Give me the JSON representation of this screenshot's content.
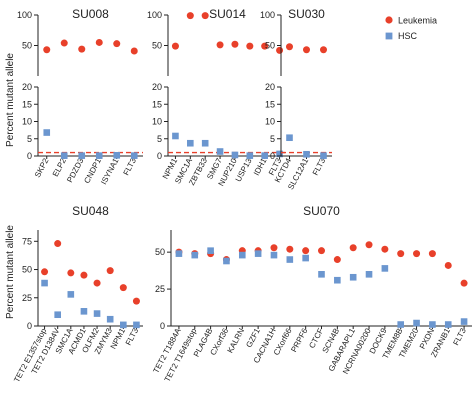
{
  "ylabel": "Percent mutant allele",
  "legend": [
    {
      "name": "Leukemia",
      "color": "#e8402a",
      "shape": "circle"
    },
    {
      "name": "HSC",
      "color": "#6b96cf",
      "shape": "square"
    }
  ],
  "chart_data": [
    {
      "type": "scatter",
      "title": "SU008",
      "ylabel": "Percent mutant allele",
      "broken_axis": true,
      "y_upper_ticks": [
        50,
        100
      ],
      "y_lower_ticks": [
        0,
        5,
        10,
        15,
        20
      ],
      "threshold": 1,
      "categories": [
        "SKP2",
        "ELP2",
        "PDZD3",
        "CNDP1",
        "ISYNA1",
        "FLT3"
      ],
      "series": [
        {
          "name": "Leukemia",
          "values": [
            43,
            54,
            44,
            55,
            53,
            41
          ]
        },
        {
          "name": "HSC",
          "values": [
            6.8,
            0.1,
            0.1,
            0.1,
            0.2,
            0.1
          ]
        }
      ]
    },
    {
      "type": "scatter",
      "title": "SU014",
      "broken_axis": true,
      "y_upper_ticks": [
        50,
        100
      ],
      "y_lower_ticks": [
        0,
        5,
        10,
        15,
        20
      ],
      "threshold": 1,
      "categories": [
        "NPM1",
        "SMC1A",
        "ZBTB33",
        "SMG7",
        "NUP210",
        "USP13",
        "IDH1",
        "FLT3"
      ],
      "series": [
        {
          "name": "Leukemia",
          "values": [
            49,
            99,
            99,
            51,
            52,
            49,
            49,
            42
          ]
        },
        {
          "name": "HSC",
          "values": [
            5.8,
            3.7,
            3.7,
            1.3,
            0.3,
            0.1,
            0.1,
            0.6
          ]
        }
      ]
    },
    {
      "type": "scatter",
      "title": "SU030",
      "broken_axis": true,
      "y_upper_ticks": [
        50,
        100
      ],
      "y_lower_ticks": [
        0,
        5,
        10,
        15,
        20
      ],
      "threshold": 1,
      "categories": [
        "KCTD4",
        "SLC12A1",
        "FLT3"
      ],
      "series": [
        {
          "name": "Leukemia",
          "values": [
            48,
            43,
            43
          ]
        },
        {
          "name": "HSC",
          "values": [
            5.3,
            0.5,
            0.1
          ]
        }
      ]
    },
    {
      "type": "scatter",
      "title": "SU048",
      "ylabel": "Percent mutant allele",
      "y_ticks": [
        0,
        25,
        50,
        75
      ],
      "categories": [
        "TET2 E1357stop",
        "TET2 D1384V",
        "SMC1A",
        "ACMD1",
        "OLFM2",
        "ZMYM3",
        "NPM1",
        "FLT3"
      ],
      "series": [
        {
          "name": "Leukemia",
          "values": [
            48,
            73,
            47,
            45,
            38,
            49,
            34,
            22
          ]
        },
        {
          "name": "HSC",
          "values": [
            38,
            10,
            28,
            13,
            11,
            6,
            1,
            1
          ]
        }
      ]
    },
    {
      "type": "scatter",
      "title": "SU070",
      "y_ticks": [
        0,
        25,
        50
      ],
      "categories": [
        "TET2 T1884A",
        "TET2 T1649stop",
        "PLAG4B",
        "CXorf36",
        "KALRN",
        "GZF1",
        "CACNA1H",
        "CXorf66",
        "PRPF6",
        "CTCF",
        "SCN4B",
        "GABARAPL1",
        "NCRNA00200",
        "DOCK9",
        "TMEM8B",
        "TMEM20",
        "PXDN",
        "ZRANB1",
        "FLT3"
      ],
      "series": [
        {
          "name": "Leukemia",
          "values": [
            50,
            49,
            49,
            45,
            51,
            51,
            53,
            52,
            51,
            51,
            45,
            53,
            55,
            52,
            49,
            49,
            49,
            41,
            29
          ]
        },
        {
          "name": "HSC",
          "values": [
            49,
            48,
            51,
            44,
            48,
            49,
            48,
            45,
            46,
            35,
            31,
            33,
            35,
            39,
            1,
            2,
            1,
            1,
            3
          ]
        }
      ]
    }
  ]
}
